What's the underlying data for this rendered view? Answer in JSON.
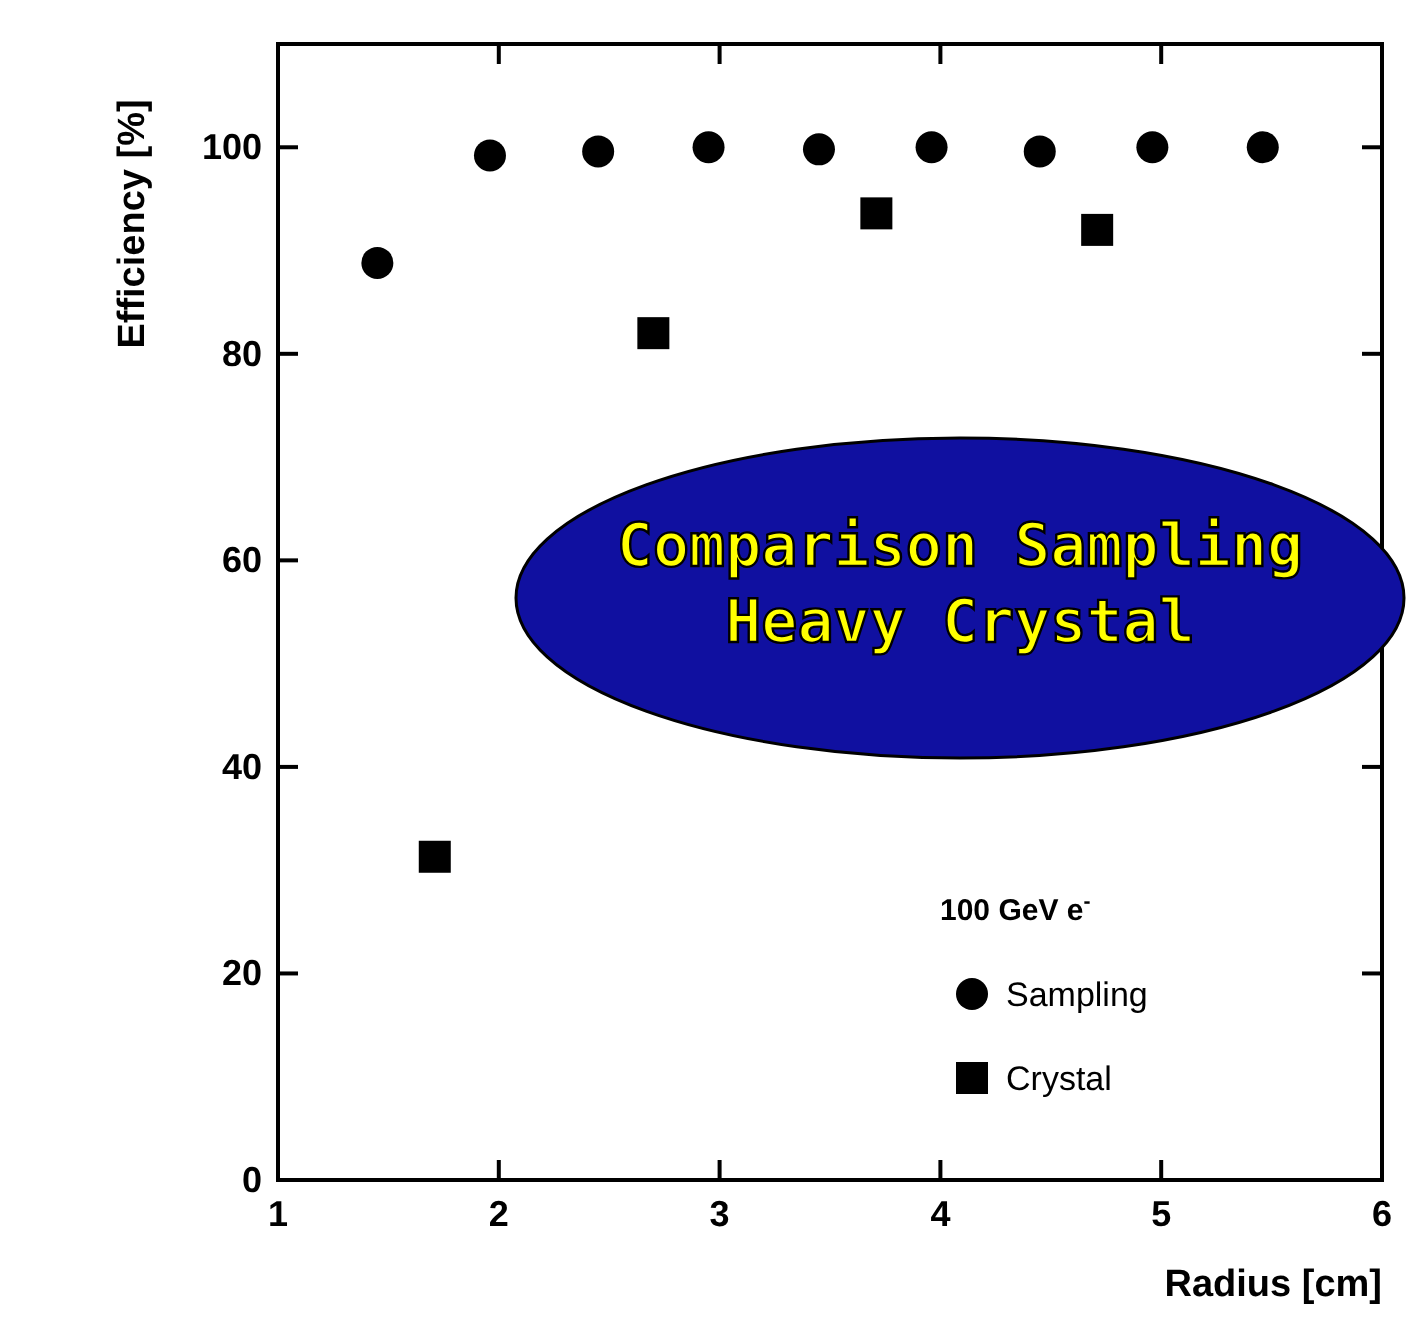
{
  "chart_data": {
    "type": "scatter",
    "xlabel": "Radius [cm]",
    "ylabel": "Efficiency [%]",
    "legend_title": "100 GeV e$^{-}$",
    "legend": "bottom right",
    "grid": false,
    "xlim": [
      1,
      6
    ],
    "xticks": [
      1,
      2,
      3,
      4,
      5,
      6
    ],
    "ylim": [
      0,
      110
    ],
    "yticks": [
      0,
      20,
      40,
      60,
      80,
      100
    ],
    "series": [
      {
        "name": "Sampling",
        "color": "#000000",
        "marker": "circle",
        "x": [
          1.45,
          1.96,
          2.45,
          2.95,
          3.45,
          3.96,
          4.45,
          4.96,
          5.46
        ],
        "values": [
          88.8,
          99.2,
          99.6,
          100,
          99.8,
          100,
          99.6,
          100,
          100
        ]
      },
      {
        "name": "Crystal",
        "color": "#000000",
        "marker": "square",
        "x": [
          1.71,
          2.7,
          3.71,
          4.71
        ],
        "values": [
          31.3,
          82,
          93.6,
          92
        ]
      }
    ],
    "annotations": [
      "Comparison Sampling\nHeavy Crystal"
    ]
  }
}
